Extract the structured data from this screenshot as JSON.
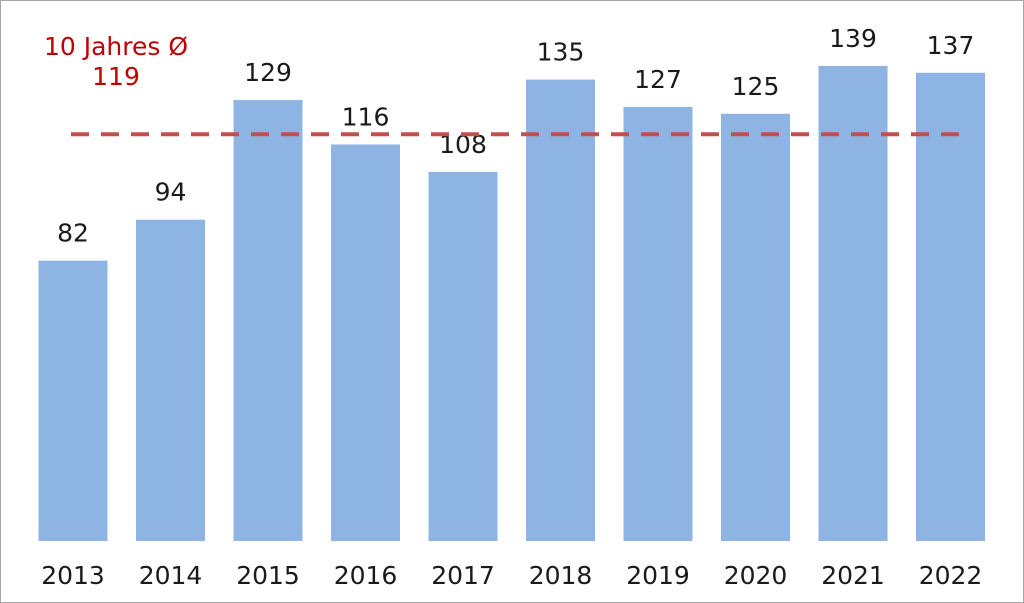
{
  "chart_data": {
    "type": "bar",
    "categories": [
      "2013",
      "2014",
      "2015",
      "2016",
      "2017",
      "2018",
      "2019",
      "2020",
      "2021",
      "2022"
    ],
    "values": [
      82,
      94,
      129,
      116,
      108,
      135,
      127,
      125,
      139,
      137
    ],
    "data_labels": [
      "82",
      "94",
      "129",
      "116",
      "108",
      "135",
      "127",
      "125",
      "139",
      "137"
    ],
    "ylim": [
      0,
      158
    ],
    "grid": false,
    "legend": "none",
    "bar_color": "#8eb4e3",
    "average_line": {
      "label": "10 Jahres Ø",
      "value": 119,
      "value_label": "119",
      "color": "#c0504d",
      "text_color": "#c00000",
      "style": "dashed"
    }
  }
}
